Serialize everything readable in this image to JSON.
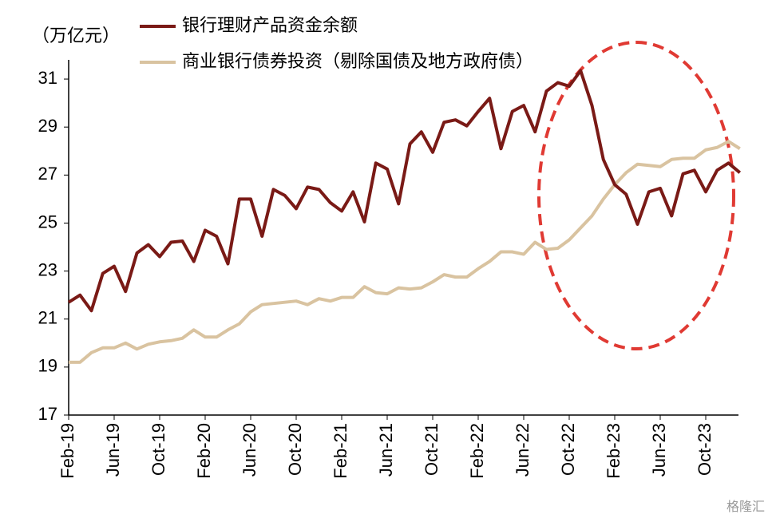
{
  "chart_data": {
    "type": "line",
    "y_unit_label": "（万亿元）",
    "watermark": "格隆汇",
    "categories": [
      "Feb-19",
      null,
      null,
      null,
      "Jun-19",
      null,
      null,
      null,
      "Oct-19",
      null,
      null,
      null,
      "Feb-20",
      null,
      null,
      null,
      "Jun-20",
      null,
      null,
      null,
      "Oct-20",
      null,
      null,
      null,
      "Feb-21",
      null,
      null,
      null,
      "Jun-21",
      null,
      null,
      null,
      "Oct-21",
      null,
      null,
      null,
      "Feb-22",
      null,
      null,
      null,
      "Jun-22",
      null,
      null,
      null,
      "Oct-22",
      null,
      null,
      null,
      "Feb-23",
      null,
      null,
      null,
      "Jun-23",
      null,
      null,
      null,
      "Oct-23",
      null,
      null,
      null
    ],
    "series": [
      {
        "name": "银行理财产品资金余额",
        "color": "#7a1a16",
        "values": [
          21.7,
          22.0,
          21.35,
          22.9,
          23.2,
          22.15,
          23.75,
          24.1,
          23.6,
          24.2,
          24.25,
          23.4,
          24.7,
          24.45,
          23.3,
          26.0,
          26.0,
          24.45,
          26.4,
          26.15,
          25.6,
          26.5,
          26.4,
          25.85,
          25.5,
          26.3,
          25.05,
          27.5,
          27.25,
          25.8,
          28.3,
          28.8,
          27.95,
          29.2,
          29.3,
          29.05,
          29.65,
          30.2,
          28.1,
          29.65,
          29.9,
          28.8,
          30.5,
          30.85,
          30.7,
          31.35,
          29.9,
          27.65,
          26.6,
          26.2,
          24.95,
          26.3,
          26.45,
          25.3,
          27.05,
          27.2,
          26.3,
          27.2,
          27.5,
          27.1
        ]
      },
      {
        "name": "商业银行债券投资（剔除国债及地方政府债）",
        "color": "#d9c3a0",
        "values": [
          19.2,
          19.2,
          19.6,
          19.8,
          19.8,
          20.0,
          19.75,
          19.95,
          20.05,
          20.1,
          20.2,
          20.55,
          20.25,
          20.25,
          20.55,
          20.8,
          21.3,
          21.6,
          21.65,
          21.7,
          21.75,
          21.6,
          21.85,
          21.75,
          21.9,
          21.9,
          22.35,
          22.1,
          22.05,
          22.3,
          22.25,
          22.3,
          22.55,
          22.85,
          22.75,
          22.75,
          23.1,
          23.4,
          23.8,
          23.8,
          23.7,
          24.2,
          23.9,
          23.95,
          24.3,
          24.8,
          25.3,
          26.0,
          26.6,
          27.1,
          27.45,
          27.4,
          27.35,
          27.65,
          27.7,
          27.7,
          28.05,
          28.15,
          28.4,
          28.1
        ]
      }
    ],
    "ylim": [
      17,
      31.8
    ],
    "yticks": [
      17,
      19,
      21,
      23,
      25,
      27,
      29,
      31
    ],
    "grid": false
  }
}
